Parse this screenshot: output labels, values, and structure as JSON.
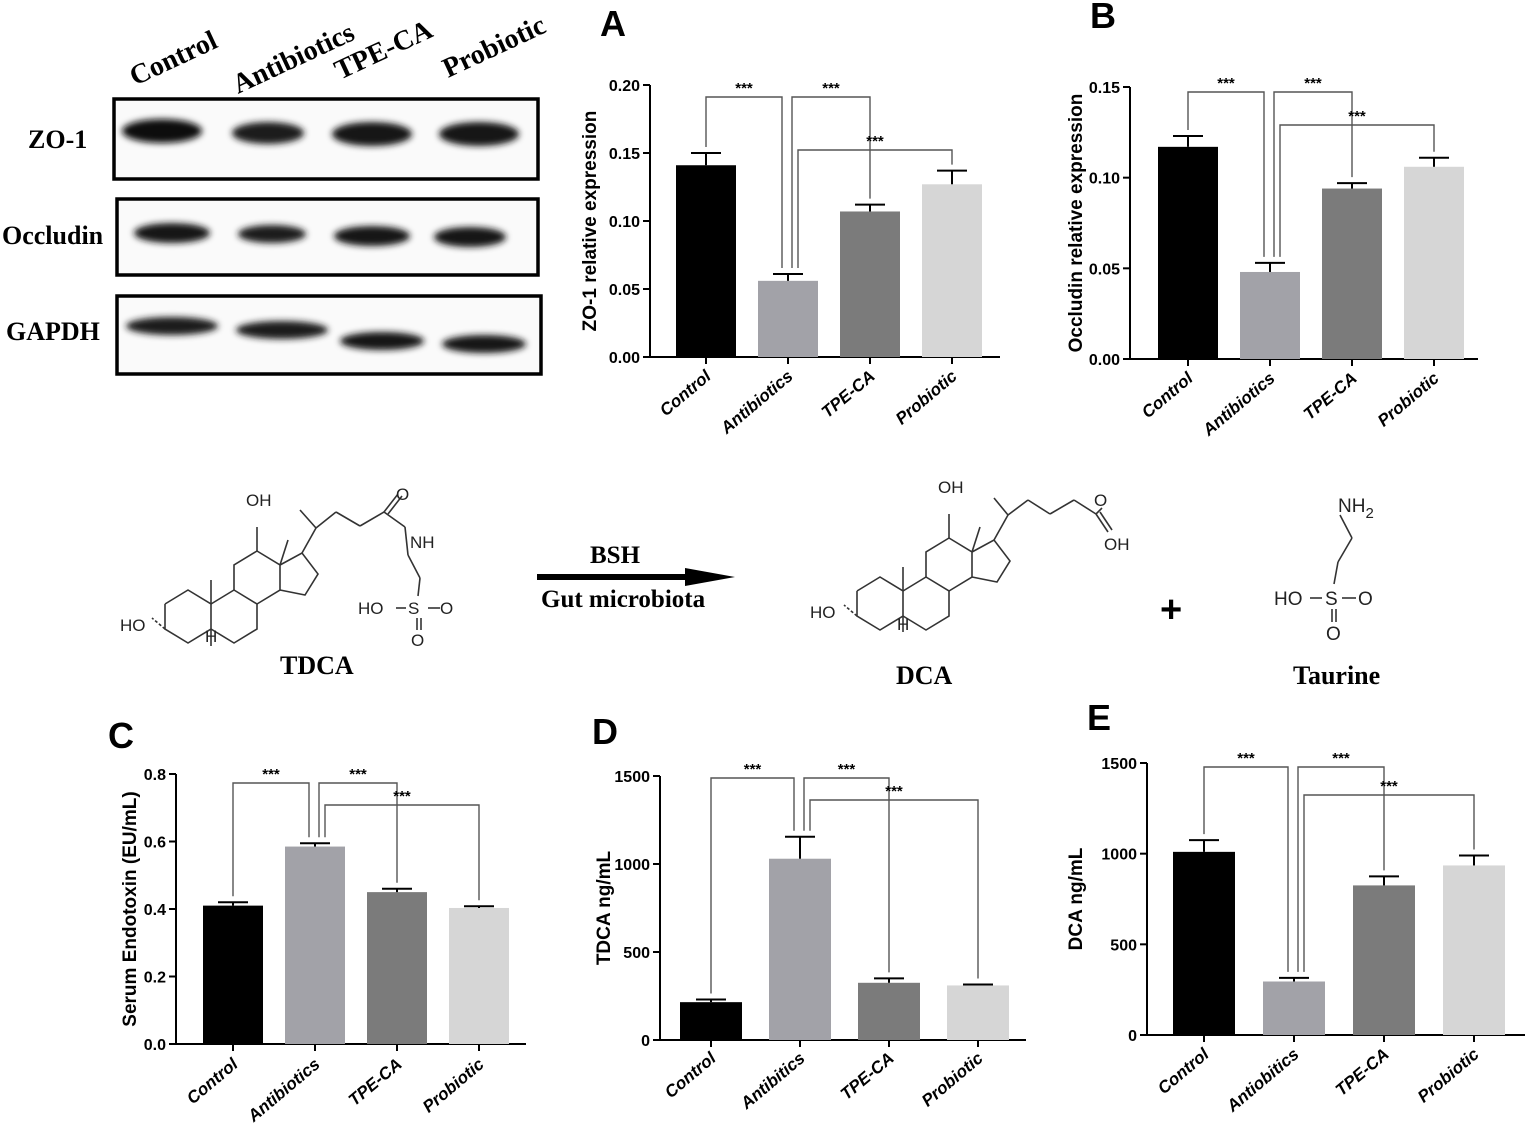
{
  "blot": {
    "lanes": [
      "Control",
      "Antibiotics",
      "TPE-CA",
      "Probiotic"
    ],
    "rows": [
      "ZO-1",
      "Occludin",
      "GAPDH"
    ]
  },
  "reaction": {
    "substrate": "TDCA",
    "enzyme": "BSH",
    "agent": "Gut microbiota",
    "products": [
      "DCA",
      "Taurine"
    ],
    "plus": "+",
    "atoms": {
      "oh": "OH",
      "ho": "HO",
      "h": "H",
      "nh": "NH",
      "o": "O",
      "s": "S",
      "nh2": "NH",
      "nh2_sub": "2"
    }
  },
  "colors": {
    "control": "#000000",
    "antibiotics": "#a2a2a8",
    "tpe_ca": "#7b7b7b",
    "probiotic": "#d6d6d6"
  },
  "chart_data": [
    {
      "panel": "A",
      "type": "bar",
      "categories": [
        "Control",
        "Antibiotics",
        "TPE-CA",
        "Probiotic"
      ],
      "values": [
        0.141,
        0.056,
        0.107,
        0.127
      ],
      "errors": [
        0.009,
        0.005,
        0.005,
        0.01
      ],
      "ylabel": "ZO-1 relative expression",
      "ylim": [
        0,
        0.2
      ],
      "yticks": [
        "0.00",
        "0.05",
        "0.10",
        "0.15",
        "0.20"
      ],
      "significance": [
        {
          "from": 0,
          "to": 1,
          "label": "***"
        },
        {
          "from": 1,
          "to": 2,
          "label": "***"
        },
        {
          "from": 1,
          "to": 3,
          "label": "***"
        }
      ]
    },
    {
      "panel": "B",
      "type": "bar",
      "categories": [
        "Control",
        "Antibiotics",
        "TPE-CA",
        "Probiotic"
      ],
      "values": [
        0.117,
        0.048,
        0.094,
        0.106
      ],
      "errors": [
        0.006,
        0.005,
        0.003,
        0.005
      ],
      "ylabel": "Occludin relative expression",
      "ylim": [
        0,
        0.15
      ],
      "yticks": [
        "0.00",
        "0.05",
        "0.10",
        "0.15"
      ],
      "significance": [
        {
          "from": 0,
          "to": 1,
          "label": "***"
        },
        {
          "from": 1,
          "to": 2,
          "label": "***"
        },
        {
          "from": 1,
          "to": 3,
          "label": "***"
        }
      ]
    },
    {
      "panel": "C",
      "type": "bar",
      "categories": [
        "Control",
        "Antibiotics",
        "TPE-CA",
        "Probiotic"
      ],
      "values": [
        0.41,
        0.585,
        0.45,
        0.403
      ],
      "errors": [
        0.01,
        0.01,
        0.01,
        0.005
      ],
      "ylabel": "Serum Endotoxin (EU/mL)",
      "ylim": [
        0,
        0.8
      ],
      "yticks": [
        "0.0",
        "0.2",
        "0.4",
        "0.6",
        "0.8"
      ],
      "significance": [
        {
          "from": 0,
          "to": 1,
          "label": "***"
        },
        {
          "from": 1,
          "to": 2,
          "label": "***"
        },
        {
          "from": 1,
          "to": 3,
          "label": "***"
        }
      ]
    },
    {
      "panel": "D",
      "type": "bar",
      "categories": [
        "Control",
        "Antibitics",
        "TPE-CA",
        "Probiotic"
      ],
      "values": [
        215,
        1030,
        325,
        310
      ],
      "errors": [
        15,
        125,
        25,
        5
      ],
      "ylabel": "TDCA  ng/mL",
      "ylim": [
        0,
        1500
      ],
      "yticks": [
        "0",
        "500",
        "1000",
        "1500"
      ],
      "significance": [
        {
          "from": 0,
          "to": 1,
          "label": "***"
        },
        {
          "from": 1,
          "to": 2,
          "label": "***"
        },
        {
          "from": 1,
          "to": 3,
          "label": "***"
        }
      ]
    },
    {
      "panel": "E",
      "type": "bar",
      "categories": [
        "Control",
        "Antiobitics",
        "TPE-CA",
        "Probiotic"
      ],
      "values": [
        1010,
        295,
        825,
        935
      ],
      "errors": [
        65,
        20,
        50,
        55
      ],
      "ylabel": "DCA  ng/mL",
      "ylim": [
        0,
        1500
      ],
      "yticks": [
        "0",
        "500",
        "1000",
        "1500"
      ],
      "significance": [
        {
          "from": 0,
          "to": 1,
          "label": "***"
        },
        {
          "from": 1,
          "to": 2,
          "label": "***"
        },
        {
          "from": 1,
          "to": 3,
          "label": "***"
        }
      ]
    }
  ]
}
